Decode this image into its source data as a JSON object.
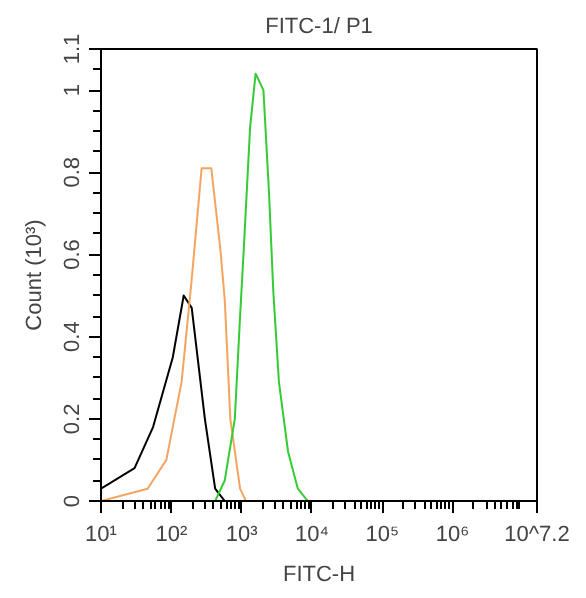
{
  "chart_data": {
    "type": "line",
    "title": "FITC-1/ P1",
    "xlabel": "FITC-H",
    "ylabel": "Count (10³)",
    "log": "x",
    "xlim": [
      10,
      15848932
    ],
    "xticks": [
      {
        "value": 10,
        "label": "10¹"
      },
      {
        "value": 100,
        "label": "10²"
      },
      {
        "value": 1000,
        "label": "10³"
      },
      {
        "value": 10000,
        "label": "10⁴"
      },
      {
        "value": 100000,
        "label": "10⁵"
      },
      {
        "value": 1000000,
        "label": "10⁶"
      },
      {
        "value": 15848932,
        "label": "10^7.2"
      }
    ],
    "ylim": [
      0,
      1.1
    ],
    "yticks": [
      0,
      0.2,
      0.4,
      0.6,
      0.8,
      1,
      1.1
    ],
    "grid": false,
    "series": [
      {
        "color": "#000000",
        "x": [
          10,
          30,
          55,
          105,
          150,
          195,
          300,
          420,
          575
        ],
        "values": [
          0.03,
          0.08,
          0.18,
          0.35,
          0.5,
          0.47,
          0.2,
          0.03,
          0
        ]
      },
      {
        "color": "#f4a460",
        "x": [
          10,
          46,
          85,
          140,
          195,
          270,
          370,
          500,
          575,
          690,
          950,
          1150
        ],
        "values": [
          0,
          0.03,
          0.1,
          0.29,
          0.54,
          0.81,
          0.81,
          0.61,
          0.49,
          0.2,
          0.03,
          0
        ]
      },
      {
        "color": "#33cc33",
        "x": [
          420,
          575,
          800,
          950,
          1070,
          1320,
          1580,
          2040,
          2450,
          2820,
          3390,
          4570,
          6300,
          8700
        ],
        "values": [
          0,
          0.05,
          0.2,
          0.45,
          0.61,
          0.91,
          1.04,
          1.0,
          0.75,
          0.51,
          0.29,
          0.12,
          0.03,
          0
        ]
      }
    ]
  }
}
